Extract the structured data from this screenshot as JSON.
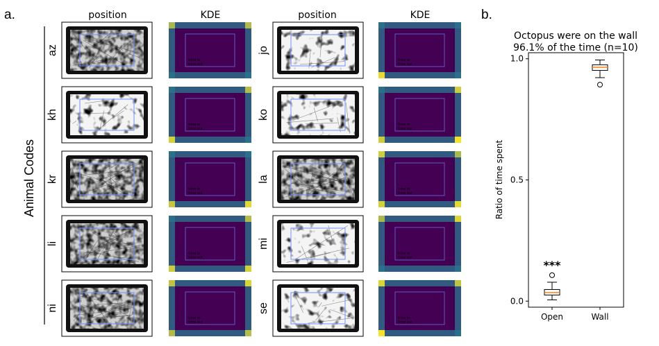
{
  "panel_a": {
    "label": "a.",
    "y_axis_title": "Animal Codes",
    "column_headers": [
      "position",
      "KDE",
      "position",
      "KDE"
    ],
    "animals_left": [
      "az",
      "kh",
      "kr",
      "li",
      "ni"
    ],
    "animals_right": [
      "jo",
      "ko",
      "la",
      "mi",
      "se"
    ],
    "kde_annotation_prefix_in": "time in",
    "kde_annotation_prefix_out": "time out",
    "colors": {
      "dark_purple": "#440154",
      "edge_teal": "#2a788e",
      "edge_yellow": "#fde725",
      "arena_box": "#6f8fff"
    }
  },
  "panel_b": {
    "label": "b.",
    "chart_title_line1": "Octopus were on the wall",
    "chart_title_line2": "96.1% of the time (n=10)",
    "significance": "***"
  },
  "chart_data": {
    "type": "box",
    "title": "Octopus were on the wall 96.1% of the time (n=10)",
    "ylabel": "Ratio of time spent",
    "categories": [
      "Open",
      "Wall"
    ],
    "ylim": [
      0.0,
      1.0
    ],
    "yticks": [
      0.0,
      0.5,
      1.0
    ],
    "ytick_labels": [
      "0.0",
      "0.5",
      "1.0"
    ],
    "boxes": [
      {
        "name": "Open",
        "whisker_low": 0.005,
        "q1": 0.025,
        "median": 0.035,
        "q3": 0.048,
        "whisker_high": 0.078,
        "outliers": [
          0.107
        ]
      },
      {
        "name": "Wall",
        "whisker_low": 0.922,
        "q1": 0.952,
        "median": 0.965,
        "q3": 0.975,
        "whisker_high": 0.995,
        "outliers": [
          0.893
        ]
      }
    ],
    "colors": {
      "box": "#000000",
      "median": "#ff7f0e"
    }
  }
}
